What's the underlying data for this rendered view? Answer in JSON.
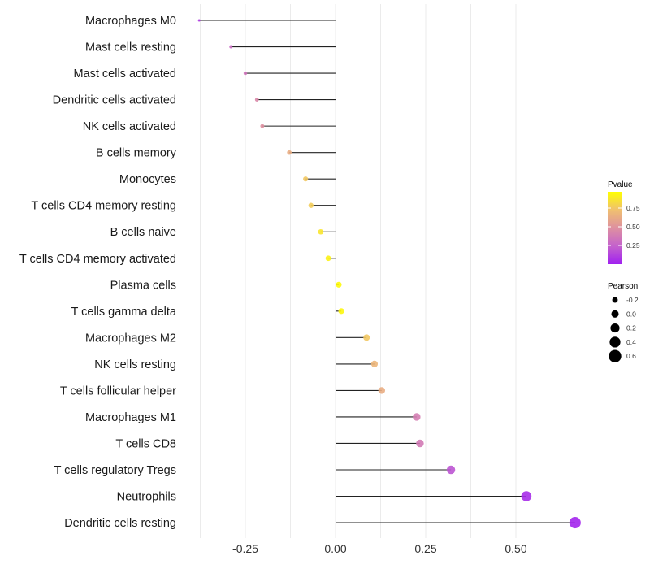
{
  "chart_data": {
    "type": "lollipop",
    "title": "",
    "xlabel": "",
    "ylabel": "",
    "xlim": [
      -0.4,
      0.7
    ],
    "xticks": [
      -0.25,
      0.0,
      0.25,
      0.5
    ],
    "xtick_labels": [
      "-0.25",
      "0.00",
      "0.25",
      "0.50"
    ],
    "grid": true,
    "categories": [
      "Macrophages M0",
      "Mast cells resting",
      "Mast cells activated",
      "Dendritic cells activated",
      "NK cells activated",
      "B cells memory",
      "Monocytes",
      "T cells CD4 memory resting",
      "B cells naive",
      "T cells CD4 memory activated",
      "Plasma cells",
      "T cells gamma delta",
      "Macrophages M2",
      "NK cells resting",
      "T cells follicular helper",
      "Macrophages M1",
      "T cells CD8",
      "T cells regulatory  Tregs",
      "Neutrophils",
      "Dendritic cells resting"
    ],
    "pearson": [
      -0.378,
      -0.29,
      -0.25,
      -0.218,
      -0.203,
      -0.128,
      -0.083,
      -0.068,
      -0.041,
      -0.02,
      0.009,
      0.016,
      0.086,
      0.108,
      0.128,
      0.225,
      0.234,
      0.32,
      0.529,
      0.664
    ],
    "pvalue": [
      0.1,
      0.3,
      0.35,
      0.45,
      0.5,
      0.65,
      0.78,
      0.8,
      0.9,
      0.95,
      0.98,
      0.97,
      0.78,
      0.7,
      0.65,
      0.4,
      0.38,
      0.2,
      0.05,
      0.02
    ],
    "legend_color": {
      "title": "Pvalue",
      "ticks": [
        0.25,
        0.5,
        0.75
      ],
      "tick_labels": [
        "0.25",
        "0.50",
        "0.75"
      ],
      "low": "#a020f0",
      "high": "#ffff00",
      "placement": "right"
    },
    "legend_size": {
      "title": "Pearson",
      "values": [
        -0.2,
        0.0,
        0.2,
        0.4,
        0.6
      ],
      "labels": [
        "-0.2",
        "0.0",
        "0.2",
        "0.4",
        "0.6"
      ],
      "placement": "right"
    }
  }
}
